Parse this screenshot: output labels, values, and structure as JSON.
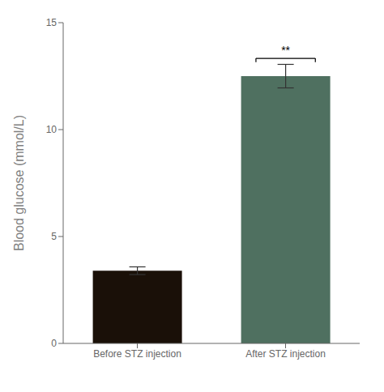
{
  "chart_data": {
    "type": "bar",
    "categories": [
      "Before STZ injection",
      "After STZ injection"
    ],
    "values": [
      3.4,
      12.5
    ],
    "errors": [
      0.18,
      0.55
    ],
    "colors": [
      "#1a1008",
      "#4f7060"
    ],
    "ylabel": "Blood glucose (mmol/L)",
    "ylim": [
      0,
      15
    ],
    "yticks": [
      0,
      5,
      10,
      15
    ],
    "grid": false,
    "annotations": [
      {
        "text": "**",
        "category": "After STZ injection"
      }
    ]
  }
}
